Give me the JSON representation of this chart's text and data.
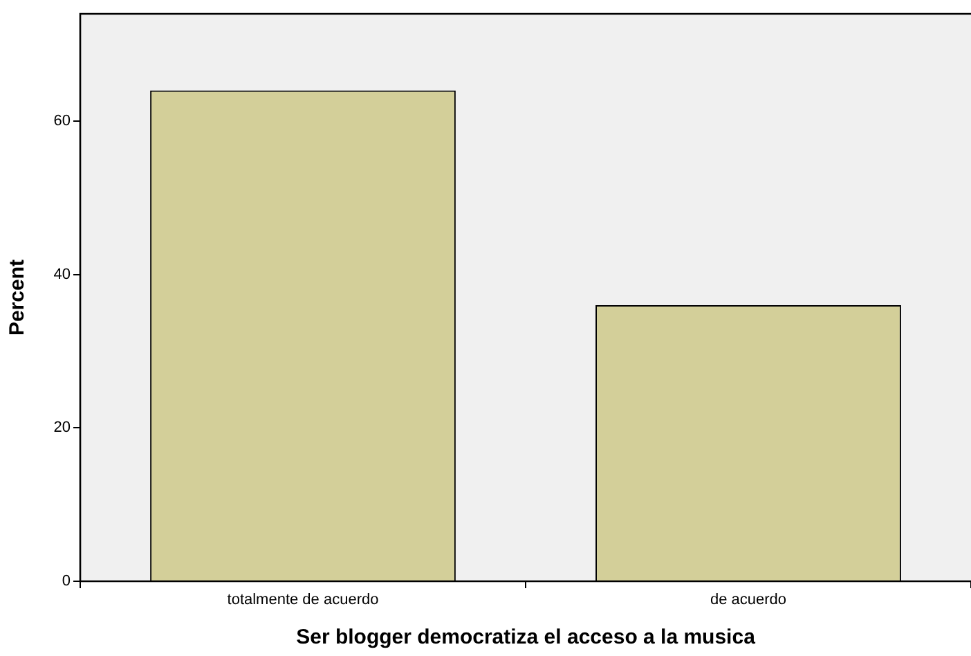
{
  "chart_data": {
    "type": "bar",
    "xlabel": "Ser blogger democratiza el acceso a la musica",
    "ylabel": "Percent",
    "categories": [
      "totalmente de acuerdo",
      "de acuerdo"
    ],
    "values": [
      64,
      36
    ],
    "color": "#d3cf99",
    "ylim": [
      0,
      74
    ],
    "yticks": [
      0,
      20,
      40,
      60
    ],
    "grid": false
  }
}
